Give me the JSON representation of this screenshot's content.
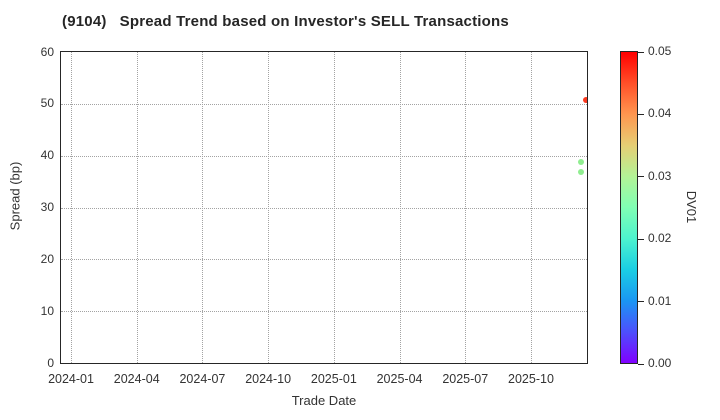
{
  "accent_colors": {
    "spine": "#262626",
    "grid": "#a3a3a3",
    "text": "#333333"
  },
  "chart_data": {
    "type": "scatter",
    "title": "(9104)   Spread Trend based on Investor's SELL Transactions",
    "xlabel": "Trade Date",
    "ylabel": "Spread (bp)",
    "ylim": [
      0,
      60
    ],
    "grid": true,
    "x_tick_labels": [
      "2024-01",
      "2024-04",
      "2024-07",
      "2024-10",
      "2025-01",
      "2025-04",
      "2025-07",
      "2025-10"
    ],
    "y_tick_values": [
      0,
      10,
      20,
      30,
      40,
      50,
      60
    ],
    "y_tick_labels": [
      "0",
      "10",
      "20",
      "30",
      "40",
      "50",
      "60"
    ],
    "points": [
      {
        "date": "2025-12-17",
        "spread_bp": 50.8,
        "dv01": 0.046,
        "color": "#fa3a20"
      },
      {
        "date": "2025-12-09",
        "spread_bp": 38.8,
        "dv01": 0.028,
        "color": "#90ee90"
      },
      {
        "date": "2025-12-09",
        "spread_bp": 36.9,
        "dv01": 0.027,
        "color": "#90ee90"
      }
    ],
    "colorbar": {
      "label": "DV01",
      "range": [
        0.0,
        0.05
      ],
      "tick_values": [
        0.0,
        0.01,
        0.02,
        0.03,
        0.04,
        0.05
      ],
      "tick_labels": [
        "0.00",
        "0.01",
        "0.02",
        "0.03",
        "0.04",
        "0.05"
      ],
      "colormap": "rainbow",
      "gradient": [
        {
          "at": 0.0,
          "color": "#8000ff"
        },
        {
          "at": 0.1,
          "color": "#4d4ffc"
        },
        {
          "at": 0.2,
          "color": "#1a96f3"
        },
        {
          "at": 0.3,
          "color": "#1acee3"
        },
        {
          "at": 0.4,
          "color": "#4df3ce"
        },
        {
          "at": 0.5,
          "color": "#80ffb4"
        },
        {
          "at": 0.6,
          "color": "#b3f396"
        },
        {
          "at": 0.7,
          "color": "#e6ce74"
        },
        {
          "at": 0.8,
          "color": "#ff964f"
        },
        {
          "at": 0.9,
          "color": "#ff4f28"
        },
        {
          "at": 1.0,
          "color": "#ff0000"
        }
      ]
    }
  }
}
